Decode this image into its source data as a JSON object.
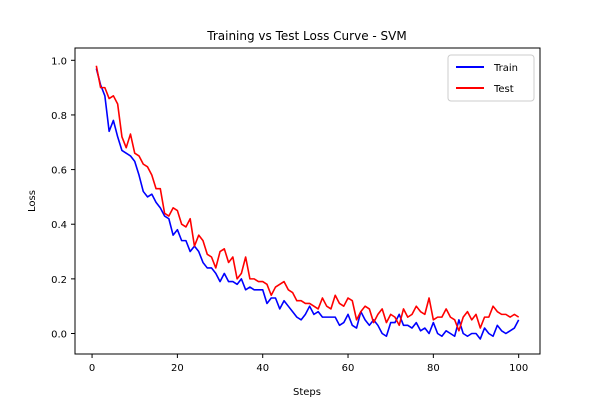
{
  "chart_data": {
    "type": "line",
    "title": "Training vs Test Loss Curve - SVM",
    "xlabel": "Steps",
    "ylabel": "Loss",
    "xlim": [
      -4,
      105
    ],
    "ylim": [
      -0.075,
      1.045
    ],
    "xticks": [
      0,
      20,
      40,
      60,
      80,
      100
    ],
    "yticks": [
      0.0,
      0.2,
      0.4,
      0.6,
      0.8,
      1.0
    ],
    "xtick_labels": [
      "0",
      "20",
      "40",
      "60",
      "80",
      "100"
    ],
    "ytick_labels": [
      "0.0",
      "0.2",
      "0.4",
      "0.6",
      "0.8",
      "1.0"
    ],
    "grid": false,
    "legend_position": "top-right",
    "x": [
      1,
      2,
      3,
      4,
      5,
      6,
      7,
      8,
      9,
      10,
      11,
      12,
      13,
      14,
      15,
      16,
      17,
      18,
      19,
      20,
      21,
      22,
      23,
      24,
      25,
      26,
      27,
      28,
      29,
      30,
      31,
      32,
      33,
      34,
      35,
      36,
      37,
      38,
      39,
      40,
      41,
      42,
      43,
      44,
      45,
      46,
      47,
      48,
      49,
      50,
      51,
      52,
      53,
      54,
      55,
      56,
      57,
      58,
      59,
      60,
      61,
      62,
      63,
      64,
      65,
      66,
      67,
      68,
      69,
      70,
      71,
      72,
      73,
      74,
      75,
      76,
      77,
      78,
      79,
      80,
      81,
      82,
      83,
      84,
      85,
      86,
      87,
      88,
      89,
      90,
      91,
      92,
      93,
      94,
      95,
      96,
      97,
      98,
      99,
      100
    ],
    "series": [
      {
        "name": "Train",
        "color": "#0000ff",
        "values": [
          0.97,
          0.91,
          0.87,
          0.74,
          0.78,
          0.72,
          0.67,
          0.66,
          0.65,
          0.63,
          0.58,
          0.52,
          0.5,
          0.51,
          0.48,
          0.46,
          0.43,
          0.42,
          0.36,
          0.38,
          0.34,
          0.34,
          0.3,
          0.32,
          0.3,
          0.26,
          0.24,
          0.24,
          0.22,
          0.19,
          0.22,
          0.19,
          0.19,
          0.18,
          0.2,
          0.16,
          0.17,
          0.16,
          0.16,
          0.16,
          0.11,
          0.13,
          0.13,
          0.09,
          0.12,
          0.1,
          0.08,
          0.06,
          0.05,
          0.07,
          0.1,
          0.07,
          0.08,
          0.06,
          0.06,
          0.06,
          0.06,
          0.03,
          0.04,
          0.07,
          0.03,
          0.02,
          0.08,
          0.05,
          0.03,
          0.05,
          0.03,
          0.0,
          -0.01,
          0.04,
          0.04,
          0.07,
          0.03,
          0.03,
          0.02,
          0.04,
          0.01,
          0.02,
          0.0,
          0.04,
          0.0,
          -0.01,
          0.01,
          0.0,
          -0.01,
          0.05,
          0.0,
          -0.01,
          0.0,
          0.0,
          -0.02,
          0.02,
          0.0,
          -0.01,
          0.03,
          0.01,
          0.0,
          0.01,
          0.02,
          0.05
        ]
      },
      {
        "name": "Test",
        "color": "#ff0000",
        "values": [
          0.98,
          0.9,
          0.9,
          0.86,
          0.87,
          0.84,
          0.72,
          0.68,
          0.73,
          0.66,
          0.65,
          0.62,
          0.61,
          0.58,
          0.53,
          0.53,
          0.44,
          0.43,
          0.46,
          0.45,
          0.4,
          0.39,
          0.42,
          0.32,
          0.36,
          0.34,
          0.29,
          0.28,
          0.24,
          0.3,
          0.31,
          0.26,
          0.28,
          0.2,
          0.22,
          0.28,
          0.2,
          0.2,
          0.19,
          0.19,
          0.18,
          0.14,
          0.17,
          0.18,
          0.19,
          0.16,
          0.15,
          0.12,
          0.12,
          0.11,
          0.11,
          0.1,
          0.09,
          0.13,
          0.1,
          0.09,
          0.14,
          0.11,
          0.1,
          0.13,
          0.12,
          0.05,
          0.08,
          0.1,
          0.09,
          0.04,
          0.07,
          0.09,
          0.04,
          0.07,
          0.06,
          0.03,
          0.09,
          0.06,
          0.07,
          0.1,
          0.08,
          0.07,
          0.13,
          0.05,
          0.06,
          0.06,
          0.09,
          0.06,
          0.05,
          0.01,
          0.06,
          0.08,
          0.05,
          0.07,
          0.02,
          0.06,
          0.06,
          0.1,
          0.08,
          0.07,
          0.07,
          0.06,
          0.07,
          0.06
        ]
      }
    ]
  }
}
